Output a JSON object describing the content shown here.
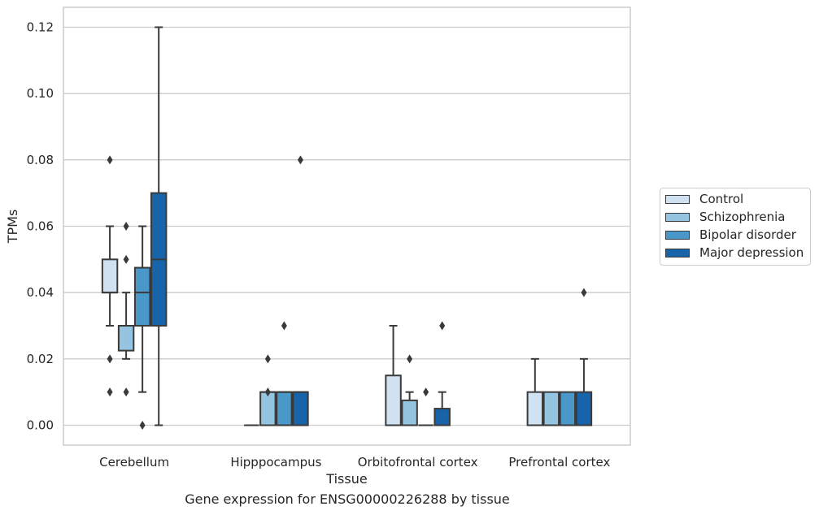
{
  "chart_data": {
    "type": "box",
    "xlabel": "Tissue",
    "ylabel": "TPMs",
    "caption": "Gene expression for ENSG00000226288 by tissue",
    "categories": [
      "Cerebellum",
      "Hipppocampus",
      "Orbitofrontal cortex",
      "Prefrontal cortex"
    ],
    "ylim": [
      -0.006,
      0.126
    ],
    "yticks": [
      {
        "value": 0.0,
        "label": "0.00"
      },
      {
        "value": 0.02,
        "label": "0.02"
      },
      {
        "value": 0.04,
        "label": "0.04"
      },
      {
        "value": 0.06,
        "label": "0.06"
      },
      {
        "value": 0.08,
        "label": "0.08"
      },
      {
        "value": 0.1,
        "label": "0.10"
      },
      {
        "value": 0.12,
        "label": "0.12"
      }
    ],
    "grid": "horizontal",
    "legend_position": "right",
    "series": [
      {
        "name": "Control",
        "color": "#d0e1f2",
        "boxes": [
          {
            "whislo": 0.03,
            "q1": 0.04,
            "med": 0.04,
            "q3": 0.05,
            "whishi": 0.06,
            "fliers": [
              0.08,
              0.02,
              0.01
            ]
          },
          {
            "whislo": 0.0,
            "q1": 0.0,
            "med": 0.0,
            "q3": 0.0,
            "whishi": 0.0,
            "fliers": []
          },
          {
            "whislo": 0.0,
            "q1": 0.0,
            "med": 0.0,
            "q3": 0.015,
            "whishi": 0.03,
            "fliers": []
          },
          {
            "whislo": 0.0,
            "q1": 0.0,
            "med": 0.0,
            "q3": 0.01,
            "whishi": 0.02,
            "fliers": []
          }
        ]
      },
      {
        "name": "Schizophrenia",
        "color": "#94c4df",
        "boxes": [
          {
            "whislo": 0.02,
            "q1": 0.0225,
            "med": 0.03,
            "q3": 0.03,
            "whishi": 0.04,
            "fliers": [
              0.06,
              0.05,
              0.01
            ]
          },
          {
            "whislo": 0.0,
            "q1": 0.0,
            "med": 0.01,
            "q3": 0.01,
            "whishi": 0.01,
            "fliers": [
              0.02,
              0.01
            ]
          },
          {
            "whislo": 0.0,
            "q1": 0.0,
            "med": 0.0,
            "q3": 0.0075,
            "whishi": 0.01,
            "fliers": [
              0.02
            ]
          },
          {
            "whislo": 0.0,
            "q1": 0.0,
            "med": 0.0,
            "q3": 0.01,
            "whishi": 0.01,
            "fliers": []
          }
        ]
      },
      {
        "name": "Bipolar disorder",
        "color": "#4a98c9",
        "boxes": [
          {
            "whislo": 0.01,
            "q1": 0.03,
            "med": 0.04,
            "q3": 0.0475,
            "whishi": 0.06,
            "fliers": [
              0.0
            ]
          },
          {
            "whislo": 0.0,
            "q1": 0.0,
            "med": 0.01,
            "q3": 0.01,
            "whishi": 0.01,
            "fliers": [
              0.03
            ]
          },
          {
            "whislo": 0.0,
            "q1": 0.0,
            "med": 0.0,
            "q3": 0.0,
            "whishi": 0.0,
            "fliers": [
              0.01
            ]
          },
          {
            "whislo": 0.0,
            "q1": 0.0,
            "med": 0.0,
            "q3": 0.01,
            "whishi": 0.01,
            "fliers": []
          }
        ]
      },
      {
        "name": "Major depression",
        "color": "#1764ab",
        "boxes": [
          {
            "whislo": 0.0,
            "q1": 0.03,
            "med": 0.05,
            "q3": 0.07,
            "whishi": 0.12,
            "fliers": []
          },
          {
            "whislo": 0.0,
            "q1": 0.0,
            "med": 0.01,
            "q3": 0.01,
            "whishi": 0.01,
            "fliers": [
              0.08
            ]
          },
          {
            "whislo": 0.0,
            "q1": 0.0,
            "med": 0.0,
            "q3": 0.005,
            "whishi": 0.01,
            "fliers": [
              0.03
            ]
          },
          {
            "whislo": 0.0,
            "q1": 0.0,
            "med": 0.0,
            "q3": 0.01,
            "whishi": 0.02,
            "fliers": [
              0.04
            ]
          }
        ]
      }
    ]
  },
  "colors": {
    "grid": "#cccccc",
    "spine": "#cccccc",
    "box_edge": "#3a3a3a",
    "text": "#262626"
  }
}
